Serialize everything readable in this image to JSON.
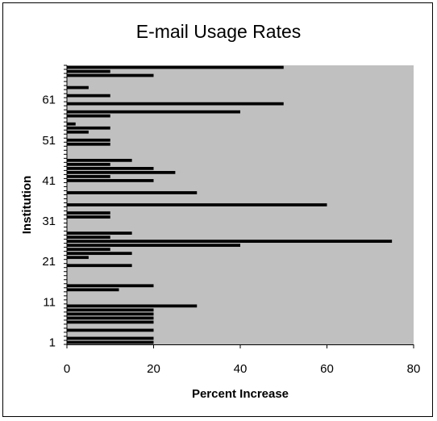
{
  "chart_data": {
    "type": "bar",
    "orientation": "horizontal",
    "title": "E-mail Usage Rates",
    "xlabel": "Percent Increase",
    "ylabel": "Institution",
    "xlim": [
      0,
      80
    ],
    "x_ticks": [
      "0",
      "20",
      "40",
      "60",
      "80"
    ],
    "ylim": [
      1,
      69
    ],
    "y_ticks": [
      "1",
      "11",
      "21",
      "31",
      "41",
      "51",
      "61"
    ],
    "plot_background": "#c0c0c0",
    "bar_color": "#000000",
    "grid": false,
    "legend": "none",
    "institutions": [
      1,
      2,
      3,
      4,
      5,
      6,
      7,
      8,
      9,
      10,
      11,
      12,
      13,
      14,
      15,
      16,
      17,
      18,
      19,
      20,
      21,
      22,
      23,
      24,
      25,
      26,
      27,
      28,
      29,
      30,
      31,
      32,
      33,
      34,
      35,
      36,
      37,
      38,
      39,
      40,
      41,
      42,
      43,
      44,
      45,
      46,
      47,
      48,
      49,
      50,
      51,
      52,
      53,
      54,
      55,
      56,
      57,
      58,
      59,
      60,
      61,
      62,
      63,
      64,
      65,
      66,
      67,
      68,
      69
    ],
    "values": [
      20,
      20,
      0,
      20,
      0,
      20,
      20,
      20,
      20,
      30,
      0,
      0,
      0,
      12,
      20,
      0,
      0,
      0,
      0,
      15,
      0,
      5,
      15,
      10,
      40,
      75,
      10,
      15,
      0,
      0,
      0,
      10,
      10,
      0,
      60,
      0,
      0,
      30,
      0,
      0,
      20,
      10,
      25,
      20,
      10,
      15,
      0,
      0,
      0,
      10,
      10,
      0,
      5,
      10,
      2,
      0,
      10,
      40,
      0,
      50,
      0,
      10,
      0,
      5,
      0,
      0,
      20,
      10,
      50
    ]
  }
}
